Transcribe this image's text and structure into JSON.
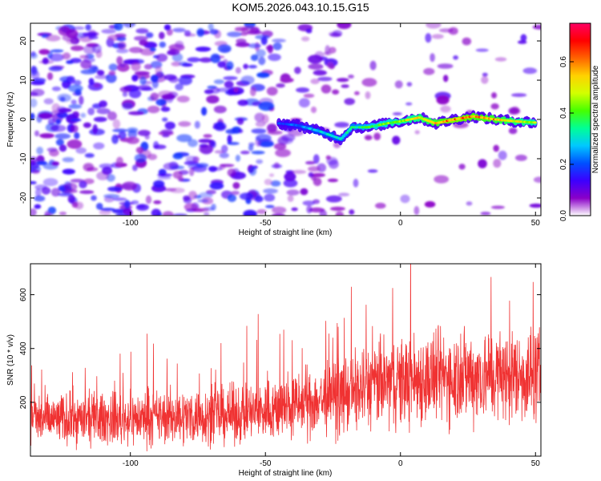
{
  "title": "KOM5.2026.043.10.15.G15",
  "chart_data": [
    {
      "type": "heatmap",
      "xlabel": "Height of straight line (km)",
      "ylabel": "Frequency (Hz)",
      "xlim": [
        -137,
        52
      ],
      "ylim": [
        -24.5,
        24.5
      ],
      "x_ticks": [
        -100,
        -50,
        0,
        50
      ],
      "y_ticks": [
        -20,
        -10,
        0,
        10,
        20
      ],
      "colorbar": {
        "label": "Normalized spectral amplitude",
        "range": [
          0.0,
          0.75
        ],
        "ticks": [
          "0.0",
          "0.2",
          "0.4",
          "0.6"
        ],
        "colors": [
          "#ffffff",
          "#8a00c8",
          "#3c00ff",
          "#0050ff",
          "#00c8ff",
          "#00ff96",
          "#46ff00",
          "#d2ff00",
          "#ffd200",
          "#ff6400",
          "#ff0000",
          "#ff0064"
        ]
      },
      "ridge": [
        {
          "x": -45,
          "y": -1.0,
          "amp": 0.18
        },
        {
          "x": -38,
          "y": -1.5,
          "amp": 0.22
        },
        {
          "x": -30,
          "y": -3.0,
          "amp": 0.28
        },
        {
          "x": -22,
          "y": -5.0,
          "amp": 0.3
        },
        {
          "x": -18,
          "y": -2.0,
          "amp": 0.32
        },
        {
          "x": -12,
          "y": -2.0,
          "amp": 0.38
        },
        {
          "x": -5,
          "y": -1.0,
          "amp": 0.42
        },
        {
          "x": 0,
          "y": -0.5,
          "amp": 0.46
        },
        {
          "x": 7,
          "y": 0.5,
          "amp": 0.5
        },
        {
          "x": 13,
          "y": -1.0,
          "amp": 0.55
        },
        {
          "x": 20,
          "y": 0.0,
          "amp": 0.62
        },
        {
          "x": 27,
          "y": 0.8,
          "amp": 0.58
        },
        {
          "x": 35,
          "y": 0.0,
          "amp": 0.55
        },
        {
          "x": 43,
          "y": -0.5,
          "amp": 0.5
        },
        {
          "x": 50,
          "y": -0.8,
          "amp": 0.45
        }
      ]
    },
    {
      "type": "line",
      "xlabel": "Height of straight line (km)",
      "ylabel": "SNR (10 * v/v)",
      "xlim": [
        -137,
        52
      ],
      "ylim": [
        0,
        715
      ],
      "x_ticks": [
        -100,
        -50,
        0,
        50
      ],
      "y_ticks": [
        200,
        400,
        600
      ],
      "color": "#f03232",
      "trend": [
        {
          "x": -137,
          "mean": 135,
          "spread": 95
        },
        {
          "x": -100,
          "mean": 140,
          "spread": 100
        },
        {
          "x": -60,
          "mean": 155,
          "spread": 110
        },
        {
          "x": -40,
          "mean": 185,
          "spread": 125
        },
        {
          "x": -20,
          "mean": 230,
          "spread": 145
        },
        {
          "x": -10,
          "mean": 265,
          "spread": 165
        },
        {
          "x": 0,
          "mean": 280,
          "spread": 175
        },
        {
          "x": 20,
          "mean": 300,
          "spread": 180
        },
        {
          "x": 52,
          "mean": 300,
          "spread": 175
        }
      ]
    }
  ]
}
